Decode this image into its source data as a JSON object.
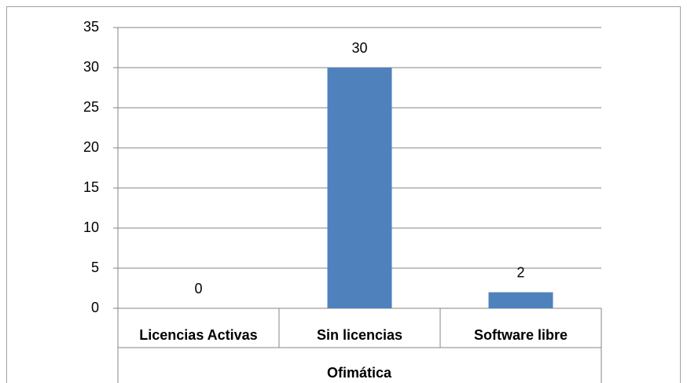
{
  "chart_data": {
    "type": "bar",
    "categories": [
      "Licencias Activas",
      "Sin licencias",
      "Software libre"
    ],
    "values": [
      0,
      30,
      2
    ],
    "color": "#4f81bd",
    "x_label": "Ofimática",
    "ylim": [
      0,
      35
    ],
    "yticks": [
      0,
      5,
      10,
      15,
      20,
      25,
      30,
      35
    ],
    "grid": true
  }
}
